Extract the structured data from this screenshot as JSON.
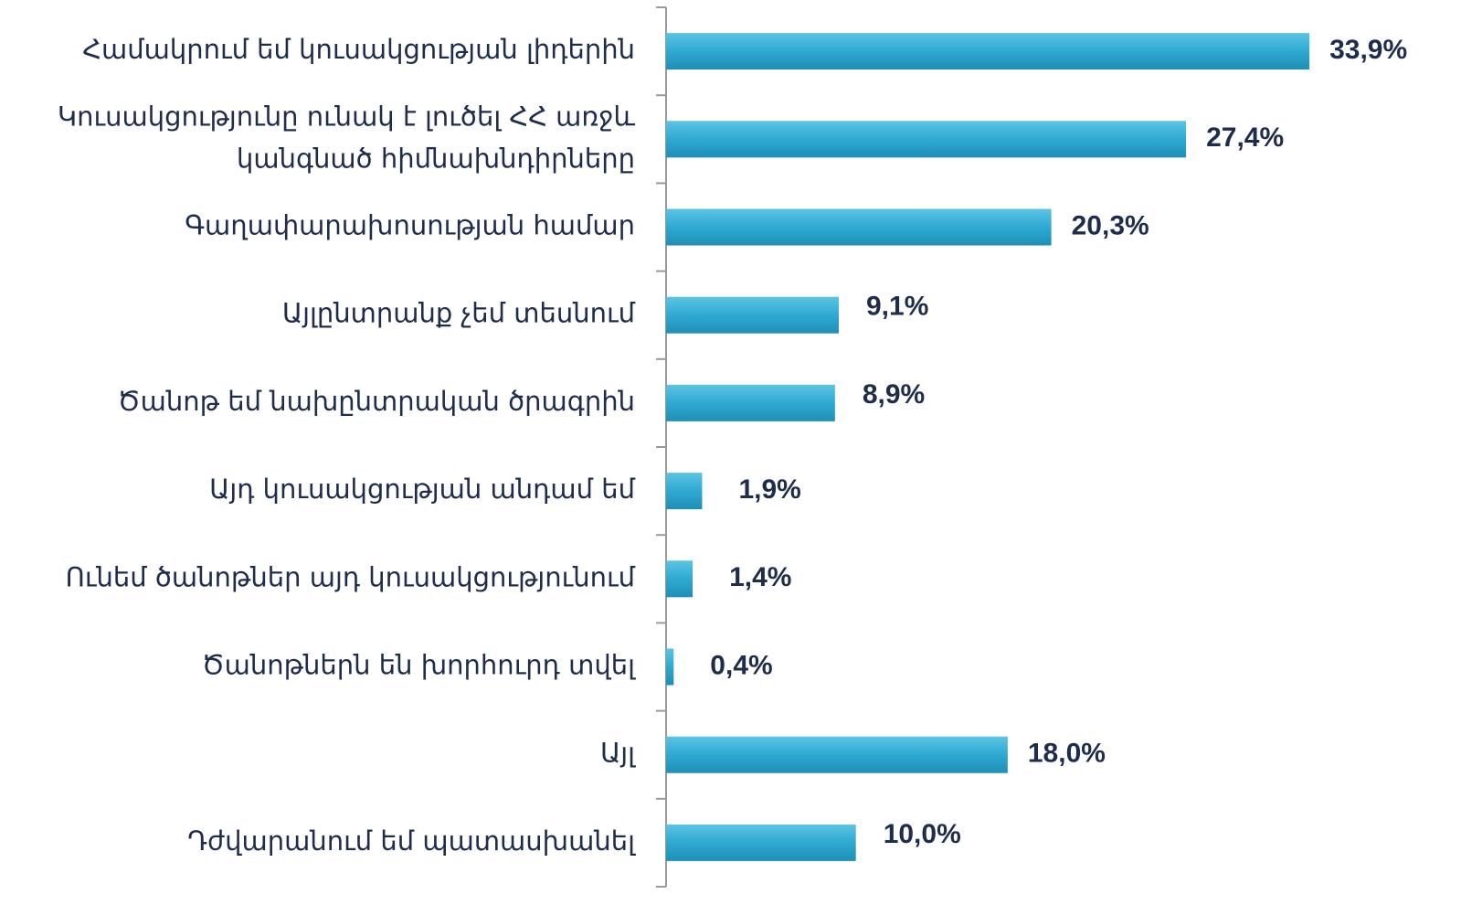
{
  "chart_data": {
    "type": "bar",
    "orientation": "horizontal",
    "categories": [
      "Համակրում եմ կուսակցության լիդերին",
      "Կուսակցությունը ունակ է լուծել ՀՀ առջև\nկանգնած հիմնախնդիրները",
      "Գաղափարախոսության համար",
      "Այլընտրանք չեմ տեսնում",
      "Ծանոթ եմ նախընտրական ծրագրին",
      "Այդ կուսակցության անդամ եմ",
      "Ունեմ ծանոթներ այդ կուսակցությունում",
      "Ծանոթներն են խորհուրդ տվել",
      "Այլ",
      "Դժվարանում եմ պատասխանել"
    ],
    "values": [
      33.9,
      27.4,
      20.3,
      9.1,
      8.9,
      1.9,
      1.4,
      0.4,
      18.0,
      10.0
    ],
    "value_labels": [
      "33,9%",
      "27,4%",
      "20,3%",
      "9,1%",
      "8,9%",
      "1,9%",
      "1,4%",
      "0,4%",
      "18,0%",
      "10,0%"
    ],
    "color": "#2fa9d2"
  }
}
